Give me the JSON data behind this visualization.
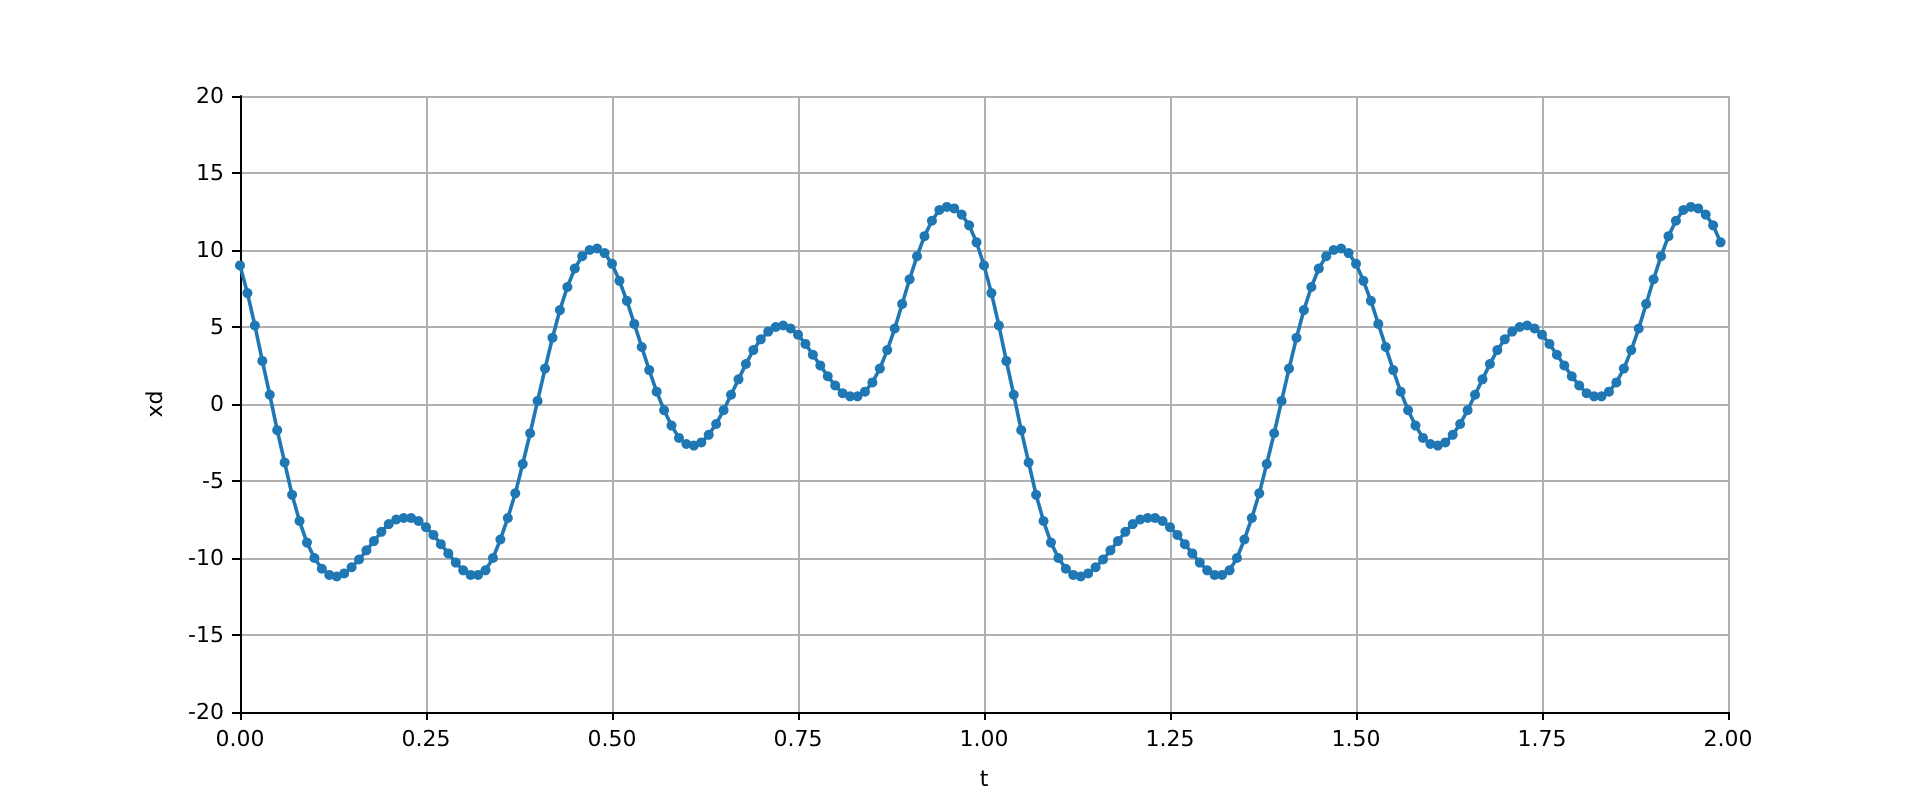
{
  "chart_data": {
    "type": "line",
    "xlabel": "t",
    "ylabel": "xd",
    "x": [
      0,
      0.01,
      0.02,
      0.03,
      0.04,
      0.05,
      0.06,
      0.07,
      0.08,
      0.09,
      0.1,
      0.11,
      0.12,
      0.13,
      0.14,
      0.15,
      0.16,
      0.17,
      0.18,
      0.19,
      0.2,
      0.21,
      0.22,
      0.23,
      0.24,
      0.25,
      0.26,
      0.27,
      0.28,
      0.29,
      0.3,
      0.31,
      0.32,
      0.33,
      0.34,
      0.35,
      0.36,
      0.37,
      0.38,
      0.39,
      0.4,
      0.41,
      0.42,
      0.43,
      0.44,
      0.45,
      0.46,
      0.47,
      0.48,
      0.49,
      0.5,
      0.51,
      0.52,
      0.53,
      0.54,
      0.55,
      0.56,
      0.57,
      0.58,
      0.59,
      0.6,
      0.61,
      0.62,
      0.63,
      0.64,
      0.65,
      0.66,
      0.67,
      0.68,
      0.69,
      0.7,
      0.71,
      0.72,
      0.73,
      0.74,
      0.75,
      0.76,
      0.77,
      0.78,
      0.79,
      0.8,
      0.81,
      0.82,
      0.83,
      0.84,
      0.85,
      0.86,
      0.87,
      0.88,
      0.89,
      0.9,
      0.91,
      0.92,
      0.93,
      0.94,
      0.95,
      0.96,
      0.97,
      0.98,
      0.99,
      1,
      1.01,
      1.02,
      1.03,
      1.04,
      1.05,
      1.06,
      1.07,
      1.08,
      1.09,
      1.1,
      1.11,
      1.12,
      1.13,
      1.14,
      1.15,
      1.16,
      1.17,
      1.18,
      1.19,
      1.2,
      1.21,
      1.22,
      1.23,
      1.24,
      1.25,
      1.26,
      1.27,
      1.28,
      1.29,
      1.3,
      1.31,
      1.32,
      1.33,
      1.34,
      1.35,
      1.36,
      1.37,
      1.38,
      1.39,
      1.4,
      1.41,
      1.42,
      1.43,
      1.44,
      1.45,
      1.46,
      1.47,
      1.48,
      1.49,
      1.5,
      1.51,
      1.52,
      1.53,
      1.54,
      1.55,
      1.56,
      1.57,
      1.58,
      1.59,
      1.6,
      1.61,
      1.62,
      1.63,
      1.64,
      1.65,
      1.66,
      1.67,
      1.68,
      1.69,
      1.7,
      1.71,
      1.72,
      1.73,
      1.74,
      1.75,
      1.76,
      1.77,
      1.78,
      1.79,
      1.8,
      1.81,
      1.82,
      1.83,
      1.84,
      1.85,
      1.86,
      1.87,
      1.88,
      1.89,
      1.9,
      1.91,
      1.92,
      1.93,
      1.94,
      1.95,
      1.96,
      1.97,
      1.98,
      1.99
    ],
    "series": [
      {
        "color": "#1f77b4",
        "values": [
          9.0,
          7.2,
          5.1,
          2.8,
          0.6,
          -1.7,
          -3.8,
          -5.9,
          -7.6,
          -9.0,
          -10.0,
          -10.7,
          -11.1,
          -11.2,
          -11.0,
          -10.6,
          -10.1,
          -9.5,
          -8.9,
          -8.3,
          -7.8,
          -7.5,
          -7.4,
          -7.4,
          -7.6,
          -8.0,
          -8.5,
          -9.1,
          -9.7,
          -10.3,
          -10.8,
          -11.1,
          -11.1,
          -10.8,
          -10.0,
          -8.8,
          -7.4,
          -5.8,
          -3.9,
          -1.9,
          0.2,
          2.3,
          4.3,
          6.1,
          7.6,
          8.8,
          9.6,
          10.0,
          10.1,
          9.8,
          9.1,
          8.0,
          6.7,
          5.2,
          3.7,
          2.2,
          0.8,
          -0.4,
          -1.4,
          -2.2,
          -2.6,
          -2.7,
          -2.5,
          -2.0,
          -1.3,
          -0.4,
          0.6,
          1.6,
          2.6,
          3.5,
          4.2,
          4.7,
          5.0,
          5.1,
          4.9,
          4.5,
          3.9,
          3.2,
          2.5,
          1.8,
          1.2,
          0.7,
          0.5,
          0.5,
          0.8,
          1.4,
          2.3,
          3.5,
          4.9,
          6.5,
          8.1,
          9.6,
          10.9,
          11.9,
          12.6,
          12.8,
          12.7,
          12.3,
          11.6,
          10.5,
          9.0,
          7.2,
          5.1,
          2.8,
          0.6,
          -1.7,
          -3.8,
          -5.9,
          -7.6,
          -9.0,
          -10.0,
          -10.7,
          -11.1,
          -11.2,
          -11.0,
          -10.6,
          -10.1,
          -9.5,
          -8.9,
          -8.3,
          -7.8,
          -7.5,
          -7.4,
          -7.4,
          -7.6,
          -8.0,
          -8.5,
          -9.1,
          -9.7,
          -10.3,
          -10.8,
          -11.1,
          -11.1,
          -10.8,
          -10.0,
          -8.8,
          -7.4,
          -5.8,
          -3.9,
          -1.9,
          0.2,
          2.3,
          4.3,
          6.1,
          7.6,
          8.8,
          9.6,
          10.0,
          10.1,
          9.8,
          9.1,
          8.0,
          6.7,
          5.2,
          3.7,
          2.2,
          0.8,
          -0.4,
          -1.4,
          -2.2,
          -2.6,
          -2.7,
          -2.5,
          -2.0,
          -1.3,
          -0.4,
          0.6,
          1.6,
          2.6,
          3.5,
          4.2,
          4.7,
          5.0,
          5.1,
          4.9,
          4.5,
          3.9,
          3.2,
          2.5,
          1.8,
          1.2,
          0.7,
          0.5,
          0.5,
          0.8,
          1.4,
          2.3,
          3.5,
          4.9,
          6.5,
          8.1,
          9.6,
          10.9,
          11.9,
          12.6,
          12.8,
          12.7,
          12.3,
          11.6,
          10.5
        ]
      }
    ],
    "xlim": [
      0,
      2
    ],
    "xticks": [
      {
        "value": 0,
        "label": "0.00"
      },
      {
        "value": 0.25,
        "label": "0.25"
      },
      {
        "value": 0.5,
        "label": "0.50"
      },
      {
        "value": 0.75,
        "label": "0.75"
      },
      {
        "value": 1,
        "label": "1.00"
      },
      {
        "value": 1.25,
        "label": "1.25"
      },
      {
        "value": 1.5,
        "label": "1.50"
      },
      {
        "value": 1.75,
        "label": "1.75"
      },
      {
        "value": 2,
        "label": "2.00"
      }
    ],
    "ylim": [
      -20,
      20
    ],
    "yticks": [
      -20,
      -15,
      -10,
      -5,
      0,
      5,
      10,
      15,
      20
    ],
    "grid": true,
    "marker": "circle",
    "line_style": "solid"
  }
}
